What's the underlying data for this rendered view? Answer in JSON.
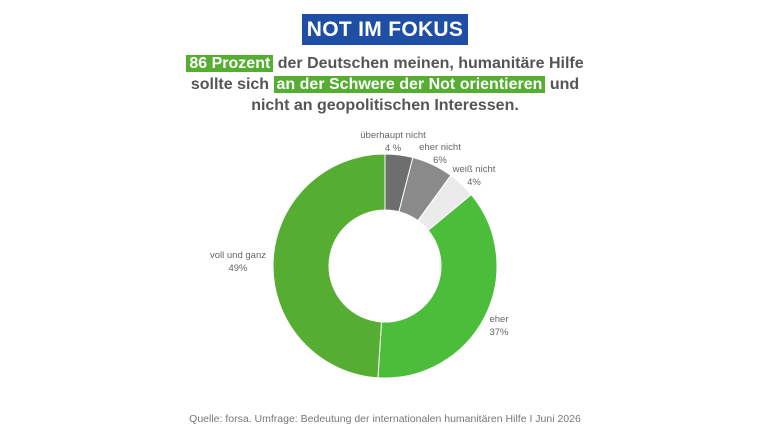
{
  "badge": "NOT IM FOKUS",
  "headline": {
    "highlight1": "86 Prozent",
    "text1": " der Deutschen meinen, humanitäre Hilfe",
    "text2": "sollte sich ",
    "highlight2": "an der Schwere der Not orientieren",
    "text3": " und",
    "text4": "nicht an geopolitischen Interessen."
  },
  "source": "Quelle: forsa. Umfrage: Bedeutung der internationalen humanitären Hilfe I Juni 2026",
  "colors": {
    "badge": "#1f4fa5",
    "highlight": "#55ad32",
    "voll_und_ganz": "#55ad32",
    "eher": "#4cbd3a",
    "weiss_nicht": "#ebebeb",
    "eher_nicht": "#8a8a8a",
    "ueberhaupt_nicht": "#6e6e6e"
  },
  "chart_data": {
    "type": "pie",
    "donut": true,
    "slices": [
      {
        "name": "überhaupt nicht",
        "value": 4,
        "label": "4 %",
        "color": "#6e6e6e"
      },
      {
        "name": "eher nicht",
        "value": 6,
        "label": "6%",
        "color": "#8a8a8a"
      },
      {
        "name": "weiß nicht",
        "value": 4,
        "label": "4%",
        "color": "#ebebeb"
      },
      {
        "name": "eher",
        "value": 37,
        "label": "37%",
        "color": "#4cbd3a"
      },
      {
        "name": "voll und ganz",
        "value": 49,
        "label": "49%",
        "color": "#55ad32"
      }
    ]
  }
}
